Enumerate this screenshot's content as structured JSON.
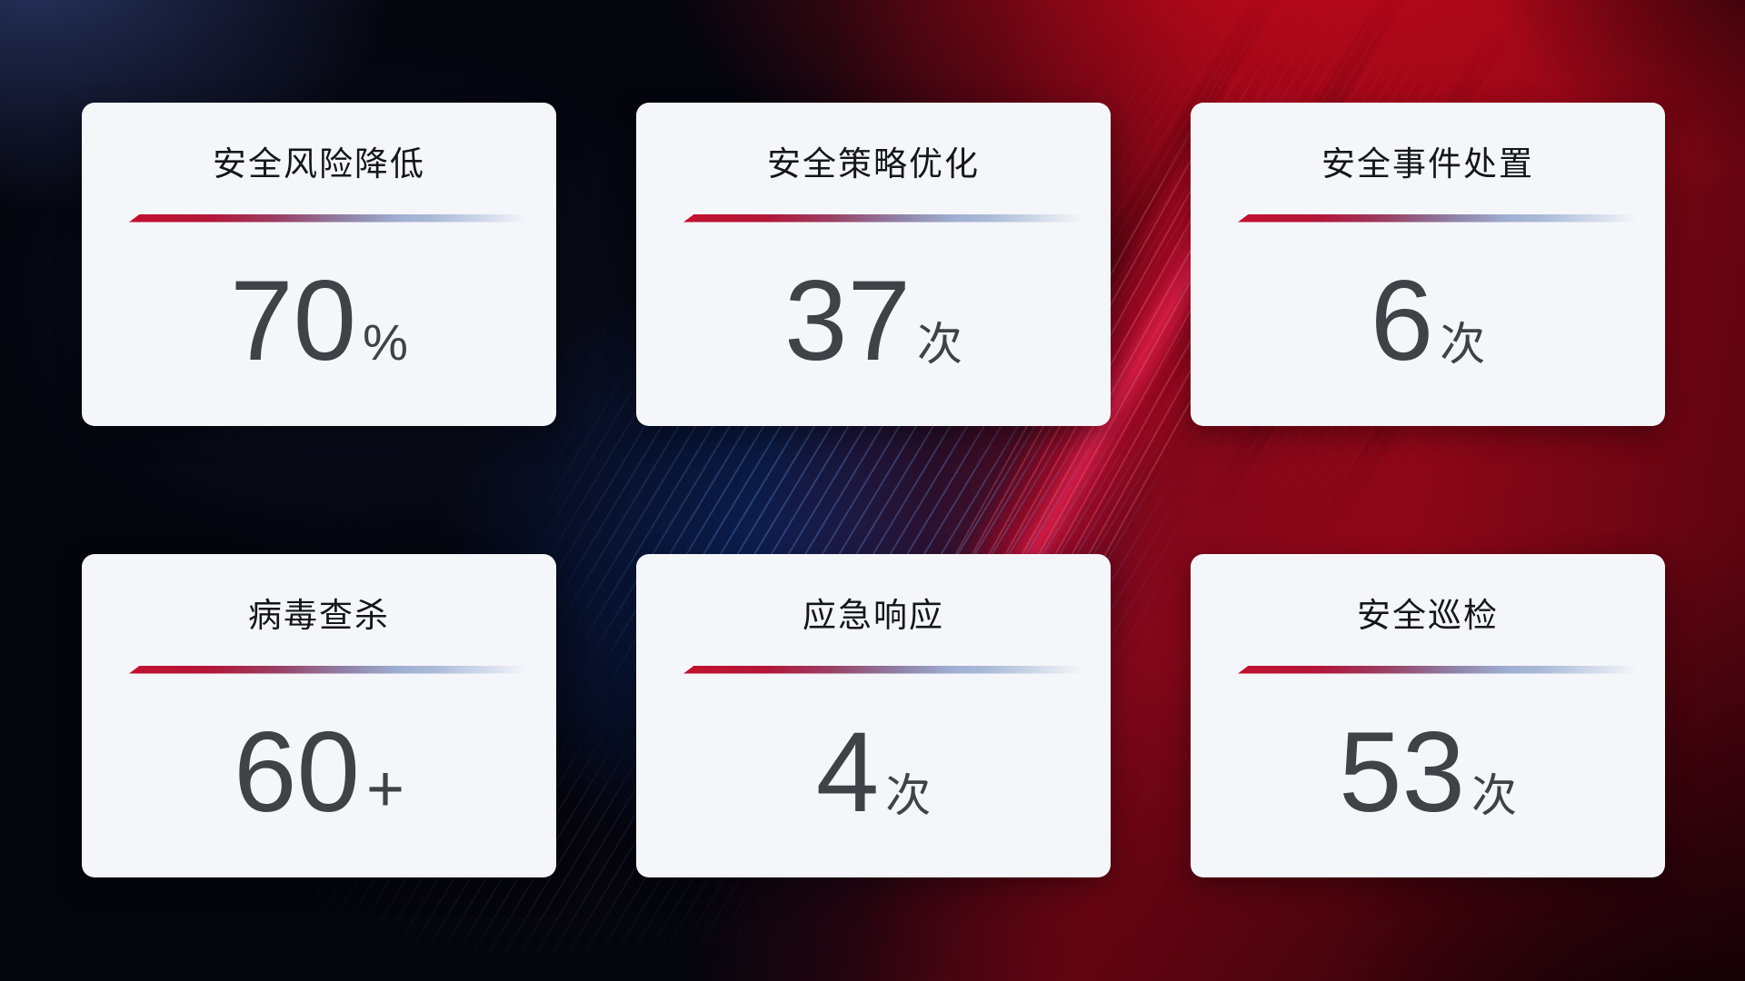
{
  "theme": {
    "bg_base": "#04050d",
    "card_bg": "#f5f6f9",
    "title_color": "#14161b",
    "value_color": "#3f4247",
    "divider_red": "#c1112e",
    "divider_purple": "#8f7fa6",
    "divider_blue": "#a9bad8",
    "bg_red_bright": "#b40819",
    "bg_red_deep": "#57040f",
    "bg_blue_glow": "#12307e",
    "bg_navy_glow": "#1c2547"
  },
  "cards": [
    {
      "title": "安全风险降低",
      "value": "70",
      "unit": "%"
    },
    {
      "title": "安全策略优化",
      "value": "37",
      "unit": "次"
    },
    {
      "title": "安全事件处置",
      "value": "6",
      "unit": "次"
    },
    {
      "title": "病毒查杀",
      "value": "60",
      "unit": "+"
    },
    {
      "title": "应急响应",
      "value": "4",
      "unit": "次"
    },
    {
      "title": "安全巡检",
      "value": "53",
      "unit": "次"
    }
  ]
}
